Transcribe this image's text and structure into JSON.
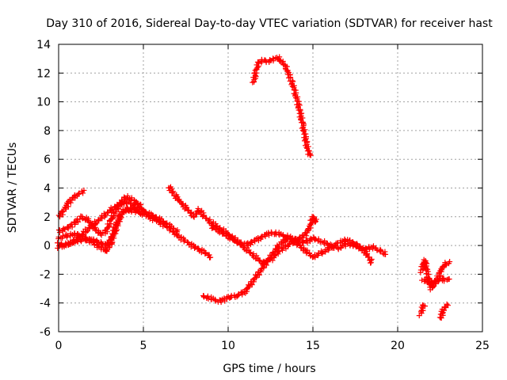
{
  "chart_data": {
    "type": "scatter",
    "title": "Day 310 of 2016, Sidereal Day-to-day VTEC variation (SDTVAR) for receiver hast",
    "xlabel": "GPS time / hours",
    "ylabel": "SDTVAR / TECUs",
    "xlim": [
      0,
      25
    ],
    "ylim": [
      -6,
      14
    ],
    "xticks": [
      "0",
      "5",
      "10",
      "15",
      "20",
      "25"
    ],
    "yticks": [
      "-6",
      "-4",
      "-2",
      "0",
      "2",
      "4",
      "6",
      "8",
      "10",
      "12",
      "14"
    ],
    "grid": true,
    "legend": "none",
    "marker": "+",
    "marker_color": "#ff0000",
    "series": [
      {
        "name": "track-1",
        "x": [
          0,
          0.3,
          0.6,
          0.9,
          1.2,
          1.5
        ],
        "y": [
          2.0,
          2.4,
          3.0,
          3.4,
          3.6,
          3.8
        ]
      },
      {
        "name": "track-2",
        "x": [
          0,
          0.5,
          0.9,
          1.3,
          1.7,
          2.1,
          2.5,
          2.8,
          3.1,
          3.4,
          3.7,
          4.0,
          4.3,
          4.6,
          4.8
        ],
        "y": [
          1.0,
          1.2,
          1.5,
          2.0,
          1.8,
          1.2,
          0.8,
          1.0,
          1.8,
          2.5,
          3.0,
          3.4,
          3.2,
          3.0,
          2.9
        ]
      },
      {
        "name": "track-3",
        "x": [
          0,
          0.5,
          1.0,
          1.5,
          2.0,
          2.4,
          2.8,
          3.1,
          3.4,
          3.7,
          4.0,
          4.5,
          5.0,
          5.5,
          6.0,
          6.5,
          7.0,
          7.5,
          8.0,
          8.5,
          9.0
        ],
        "y": [
          0.5,
          0.7,
          0.8,
          0.6,
          0.2,
          -0.1,
          -0.4,
          0.2,
          1.2,
          2.2,
          2.5,
          2.4,
          2.2,
          1.9,
          1.6,
          1.2,
          0.7,
          0.3,
          -0.1,
          -0.4,
          -0.8
        ]
      },
      {
        "name": "track-4",
        "x": [
          0,
          0.5,
          1.0,
          1.5,
          2.0,
          2.5,
          2.8,
          3.1,
          3.4,
          3.7,
          4.0,
          4.5,
          5.0,
          5.5,
          6.0,
          6.5,
          7.0
        ],
        "y": [
          -0.1,
          0.1,
          0.3,
          0.4,
          0.4,
          0.2,
          0.0,
          0.5,
          1.5,
          2.2,
          2.6,
          2.5,
          2.4,
          2.1,
          1.8,
          1.4,
          1.0
        ]
      },
      {
        "name": "track-5",
        "x": [
          0,
          0.4,
          0.8,
          1.2,
          1.6,
          2.0,
          2.4,
          2.8,
          3.2,
          3.6,
          4.0,
          4.5,
          5.0
        ],
        "y": [
          0.1,
          0.0,
          0.2,
          0.6,
          1.0,
          1.4,
          1.8,
          2.2,
          2.6,
          2.9,
          3.0,
          2.8,
          2.5
        ]
      },
      {
        "name": "track-6",
        "x": [
          6.5,
          6.8,
          7.2,
          7.6,
          8.0,
          8.3,
          8.6,
          9.0,
          9.5,
          10.0,
          10.5,
          11.0,
          11.5,
          12.0,
          12.5,
          13.0,
          13.5,
          14.0,
          14.5,
          15.0,
          15.5,
          16.0,
          16.5,
          17.0,
          17.5,
          18.0,
          18.5,
          19.0,
          19.3
        ],
        "y": [
          4.1,
          3.6,
          3.0,
          2.5,
          2.0,
          2.5,
          2.0,
          1.6,
          1.2,
          0.8,
          0.3,
          0.0,
          0.3,
          0.6,
          0.9,
          0.8,
          0.6,
          0.4,
          0.2,
          0.5,
          0.3,
          0.0,
          -0.2,
          0.1,
          0.0,
          -0.3,
          -0.1,
          -0.4,
          -0.6
        ]
      },
      {
        "name": "track-7",
        "x": [
          9.0,
          9.5,
          10.0,
          10.5,
          11.0,
          11.5,
          12.0,
          12.5,
          13.0,
          13.5,
          14.0,
          14.5,
          14.8,
          15.0,
          15.2
        ],
        "y": [
          1.3,
          1.0,
          0.6,
          0.3,
          -0.2,
          -0.7,
          -1.2,
          -1.0,
          -0.4,
          0.0,
          0.4,
          0.7,
          1.2,
          2.0,
          1.6
        ]
      },
      {
        "name": "track-8",
        "x": [
          8.5,
          9.0,
          9.5,
          10.0,
          10.5,
          11.0,
          11.5,
          12.0,
          12.5,
          13.0,
          13.5,
          14.0,
          14.5,
          15.0,
          15.5,
          16.0,
          16.5,
          17.0,
          17.5,
          18.0,
          18.5
        ],
        "y": [
          -3.5,
          -3.7,
          -3.9,
          -3.6,
          -3.5,
          -3.2,
          -2.4,
          -1.6,
          -0.8,
          0.0,
          0.5,
          0.2,
          -0.3,
          -0.8,
          -0.5,
          -0.2,
          0.2,
          0.4,
          0.1,
          -0.3,
          -1.2
        ]
      },
      {
        "name": "track-9",
        "x": [
          11.5,
          11.6,
          11.8,
          12.0,
          12.3,
          12.6,
          12.9,
          13.1,
          13.4,
          13.7,
          14.0,
          14.2,
          14.4,
          14.6,
          14.8
        ],
        "y": [
          11.3,
          12.0,
          12.7,
          12.9,
          12.8,
          12.9,
          13.1,
          12.9,
          12.4,
          11.6,
          10.5,
          9.5,
          8.4,
          7.2,
          6.2
        ]
      },
      {
        "name": "track-10",
        "x": [
          21.4,
          21.5,
          21.6,
          21.7,
          21.8,
          22.0,
          22.2,
          22.4,
          22.6,
          22.8,
          23.0
        ],
        "y": [
          -1.8,
          -1.4,
          -1.0,
          -1.5,
          -2.4,
          -3.0,
          -2.6,
          -2.2,
          -1.6,
          -1.3,
          -1.2
        ]
      },
      {
        "name": "track-11",
        "x": [
          21.5,
          21.7,
          22.0,
          22.3,
          22.6,
          22.8,
          23.0
        ],
        "y": [
          -2.5,
          -2.4,
          -2.6,
          -2.5,
          -2.3,
          -2.4,
          -2.4
        ]
      },
      {
        "name": "track-12",
        "x": [
          21.3,
          21.4,
          21.5,
          21.6
        ],
        "y": [
          -4.8,
          -4.6,
          -4.3,
          -4.1
        ]
      },
      {
        "name": "track-13",
        "x": [
          22.5,
          22.6,
          22.7,
          22.8,
          22.9
        ],
        "y": [
          -5.1,
          -4.8,
          -4.5,
          -4.3,
          -4.1
        ]
      }
    ]
  }
}
